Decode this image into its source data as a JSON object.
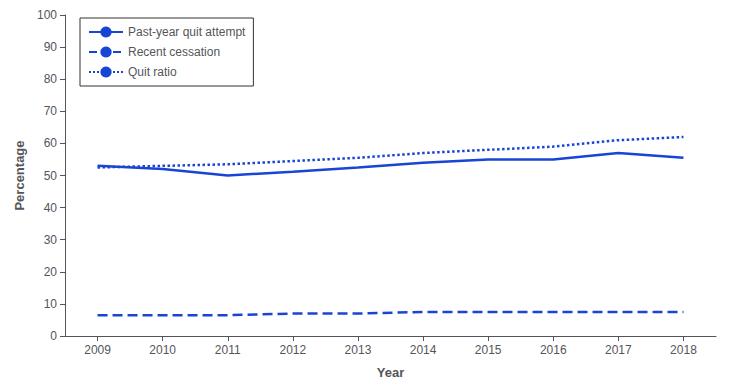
{
  "chart_data": {
    "type": "line",
    "x": [
      2009,
      2010,
      2011,
      2012,
      2013,
      2014,
      2015,
      2016,
      2017,
      2018
    ],
    "series": [
      {
        "name": "Past-year quit attempt",
        "color": "#1845d4",
        "line_style": "solid",
        "values": [
          53.0,
          52.0,
          50.0,
          51.2,
          52.5,
          54.0,
          55.0,
          55.0,
          57.0,
          55.5
        ]
      },
      {
        "name": "Recent cessation",
        "color": "#1845d4",
        "line_style": "dashed",
        "values": [
          6.5,
          6.5,
          6.5,
          7.0,
          7.0,
          7.5,
          7.5,
          7.5,
          7.5,
          7.5
        ]
      },
      {
        "name": "Quit ratio",
        "color": "#1845d4",
        "line_style": "dotted",
        "values": [
          52.5,
          53.0,
          53.5,
          54.5,
          55.5,
          57.0,
          58.0,
          59.0,
          61.0,
          62.0
        ]
      }
    ],
    "xlabel": "Year",
    "ylabel": "Percentage",
    "xlim": [
      2008.5,
      2018.5
    ],
    "xticks": [
      2009,
      2010,
      2011,
      2012,
      2013,
      2014,
      2015,
      2016,
      2017,
      2018
    ],
    "ylim": [
      0,
      100
    ],
    "yticks": [
      0,
      10,
      20,
      30,
      40,
      50,
      60,
      70,
      80,
      90,
      100
    ],
    "grid": false,
    "legend": "upper left"
  }
}
